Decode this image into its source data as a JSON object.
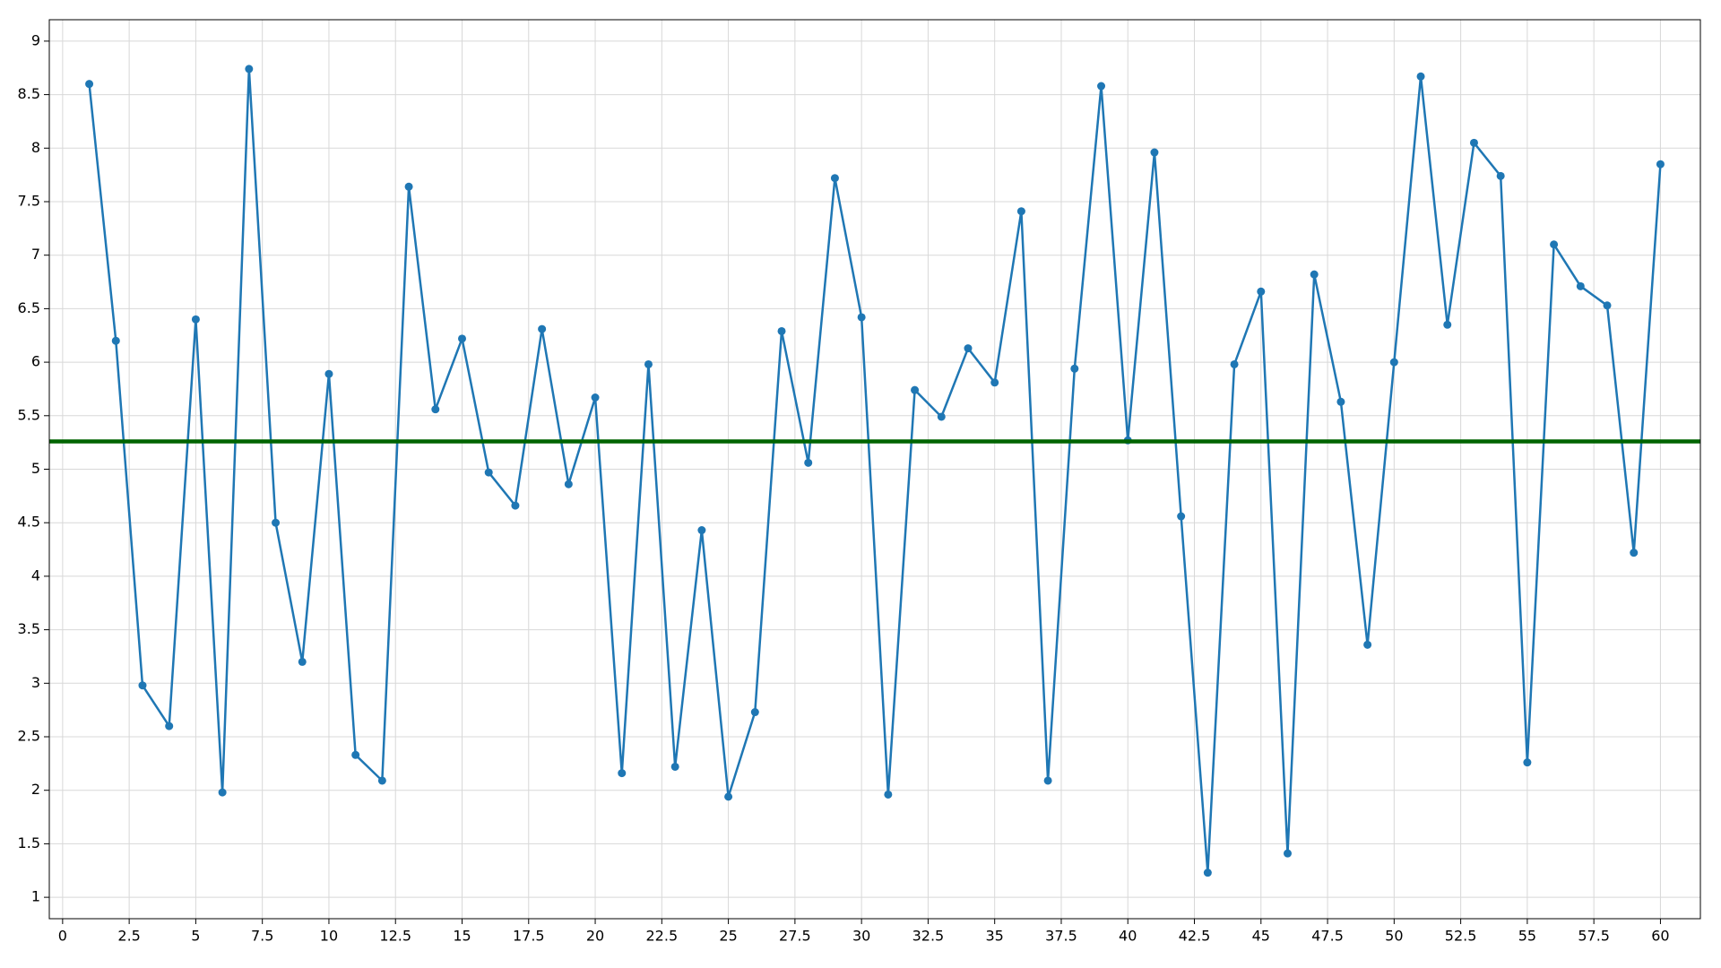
{
  "chart_data": {
    "type": "line",
    "x": [
      1,
      2,
      3,
      4,
      5,
      6,
      7,
      8,
      9,
      10,
      11,
      12,
      13,
      14,
      15,
      16,
      17,
      18,
      19,
      20,
      21,
      22,
      23,
      24,
      25,
      26,
      27,
      28,
      29,
      30,
      31,
      32,
      33,
      34,
      35,
      36,
      37,
      38,
      39,
      40,
      41,
      42,
      43,
      44,
      45,
      46,
      47,
      48,
      49,
      50,
      51,
      52,
      53,
      54,
      55,
      56,
      57,
      58,
      59,
      60
    ],
    "series": [
      {
        "color": "#1f77b4",
        "values": [
          8.6,
          6.2,
          2.98,
          2.6,
          6.4,
          1.98,
          8.74,
          4.5,
          3.2,
          5.89,
          2.33,
          2.09,
          7.64,
          5.56,
          6.22,
          4.97,
          4.66,
          6.31,
          4.86,
          5.67,
          2.16,
          5.98,
          2.22,
          4.43,
          1.94,
          2.73,
          6.29,
          5.06,
          7.72,
          6.42,
          1.96,
          5.74,
          5.49,
          6.13,
          5.81,
          7.41,
          2.09,
          5.94,
          8.58,
          5.27,
          7.96,
          4.56,
          1.23,
          5.98,
          6.66,
          1.41,
          6.82,
          5.63,
          3.36,
          6.0,
          8.67,
          6.35,
          8.05,
          7.74,
          2.26,
          7.1,
          6.71,
          6.53,
          4.22,
          7.85
        ]
      }
    ],
    "hline": {
      "value": 5.26,
      "color": "#006400"
    },
    "xlim": [
      -0.5,
      61.5
    ],
    "xticks": [
      0,
      2.5,
      5,
      7.5,
      10,
      12.5,
      15,
      17.5,
      20,
      22.5,
      25,
      27.5,
      30,
      32.5,
      35,
      37.5,
      40,
      42.5,
      45,
      47.5,
      50,
      52.5,
      55,
      57.5,
      60
    ],
    "ylim": [
      0.8,
      9.2
    ],
    "yticks": [
      1,
      1.5,
      2,
      2.5,
      3,
      3.5,
      4,
      4.5,
      5,
      5.5,
      6,
      6.5,
      7,
      7.5,
      8,
      8.5,
      9
    ],
    "grid": true
  }
}
